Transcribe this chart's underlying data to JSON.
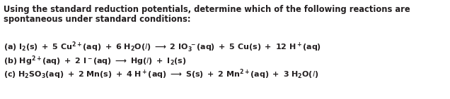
{
  "title_line1": "Using the standard reduction potentials, determine which of the following reactions are",
  "title_line2": "spontaneous under standard conditions:",
  "eq_a": "(a) $\\mathrm{I_2(s) + 5\\,Cu^{2+}(aq) + 6\\,H_2O(\\mathit{l}) \\longrightarrow 2\\,IO_3^{\\,-}(aq) + 5\\,Cu(s) + 12\\,H^+(aq)}$",
  "eq_b": "(b) $\\mathrm{Hg^{2+}(aq) + 2\\,I^-(aq) \\longrightarrow Hg(\\mathit{l}) + I_2(s)}$",
  "eq_c": "(c) $\\mathrm{H_2SO_3(aq) + 2\\,Mn(s) + 4\\,H^+(aq) \\longrightarrow S(s) + 2\\,Mn^{2+}(aq) + 3\\,H_2O(\\mathit{l})}$",
  "bg_color": "#ffffff",
  "text_color": "#231f20",
  "figsize": [
    6.36,
    1.41
  ],
  "dpi": 100,
  "fontsize_title": 8.3,
  "fontsize_eq": 8.0
}
